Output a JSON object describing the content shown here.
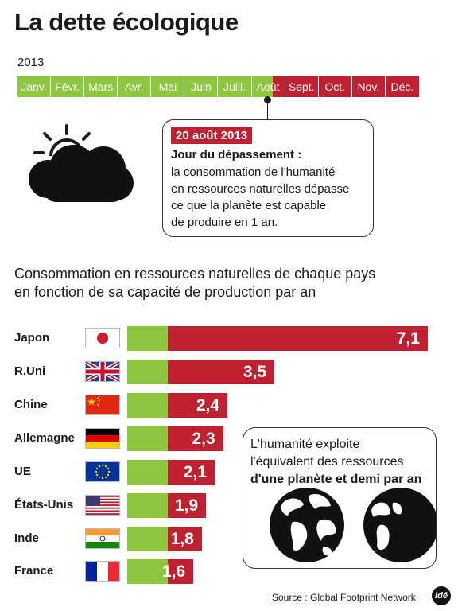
{
  "title": "La dette écologique",
  "timeline": {
    "year": "2013",
    "months": [
      {
        "label": "Janv.",
        "status": "green"
      },
      {
        "label": "Févr.",
        "status": "green"
      },
      {
        "label": "Mars",
        "status": "green"
      },
      {
        "label": "Avr.",
        "status": "green"
      },
      {
        "label": "Mai",
        "status": "green"
      },
      {
        "label": "Juin",
        "status": "green"
      },
      {
        "label": "Juill.",
        "status": "green"
      },
      {
        "label": "Août",
        "status": "split"
      },
      {
        "label": "Sept.",
        "status": "red"
      },
      {
        "label": "Oct.",
        "status": "red"
      },
      {
        "label": "Nov.",
        "status": "red"
      },
      {
        "label": "Déc.",
        "status": "red"
      }
    ],
    "marker_date": "2013-08-20"
  },
  "callout": {
    "date": "20 août 2013",
    "heading": "Jour du dépassement :",
    "lines": [
      "la consommation de l'humanité",
      "en ressources naturelles dépasse",
      "ce que la planète est capable",
      "de produire en 1 an."
    ]
  },
  "subtitle": {
    "line1": "Consommation en ressources naturelles de chaque pays",
    "line2": "en fonction de sa capacité de production par an"
  },
  "chart_data": {
    "type": "bar",
    "categories": [
      "Japon",
      "R.Uni",
      "Chine",
      "Allemagne",
      "UE",
      "États-Unis",
      "Inde",
      "France"
    ],
    "values": [
      7.1,
      3.5,
      2.4,
      2.3,
      2.1,
      1.9,
      1.8,
      1.6
    ],
    "value_labels": [
      "7,1",
      "3,5",
      "2,4",
      "2,3",
      "2,1",
      "1,9",
      "1,8",
      "1,6"
    ],
    "flags": [
      "japan-flag",
      "uk-flag",
      "china-flag",
      "germany-flag",
      "eu-flag",
      "usa-flag",
      "india-flag",
      "france-flag"
    ],
    "baseline": 1,
    "colors": {
      "within_capacity": "#8dc63f",
      "overshoot": "#c0202f"
    }
  },
  "info": {
    "line1": "L'humanité exploite",
    "line2": "l'équivalent des ressources",
    "line3": "d'une planète et demi par an"
  },
  "source": "Source : Global Footprint Network",
  "logo": "idé",
  "colors": {
    "green": "#8dc63f",
    "red": "#c0202f",
    "ink": "#1a1a1a"
  }
}
